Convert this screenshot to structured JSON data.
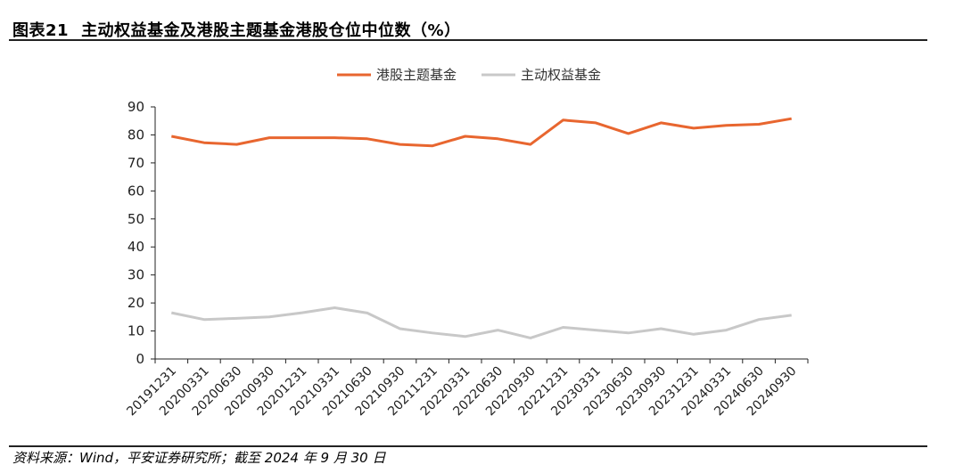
{
  "header": {
    "figure_label": "图表21",
    "title": "主动权益基金及港股主题基金港股仓位中位数（%）"
  },
  "footer": {
    "source": "资料来源：Wind，平安证券研究所；截至 2024 年 9 月 30 日"
  },
  "colors": {
    "hk_series": "#E8662F",
    "active_series": "#C8C8C8",
    "axis": "#222222"
  },
  "chart_data": {
    "type": "line",
    "title": "",
    "xlabel": "",
    "ylabel": "",
    "ylim": [
      0,
      90
    ],
    "yticks": [
      "0",
      "10",
      "20",
      "30",
      "40",
      "50",
      "60",
      "70",
      "80",
      "90"
    ],
    "grid": false,
    "legend_position": "top-center",
    "categories": [
      "20191231",
      "20200331",
      "20200630",
      "20200930",
      "20201231",
      "20210331",
      "20210630",
      "20210930",
      "20211231",
      "20220331",
      "20220630",
      "20220930",
      "20221231",
      "20230331",
      "20230630",
      "20230930",
      "20231231",
      "20240331",
      "20240630",
      "20240930"
    ],
    "series": [
      {
        "name": "港股主题基金",
        "color": "#E8662F",
        "values": [
          79.5,
          77.2,
          76.6,
          79.0,
          79.0,
          79.0,
          78.6,
          76.6,
          76.1,
          79.5,
          78.6,
          76.6,
          85.3,
          84.3,
          80.5,
          84.3,
          82.4,
          83.4,
          83.8,
          85.8
        ]
      },
      {
        "name": "主动权益基金",
        "color": "#C8C8C8",
        "values": [
          16.5,
          14.1,
          14.5,
          15.0,
          16.5,
          18.3,
          16.4,
          10.8,
          9.3,
          8.0,
          10.3,
          7.5,
          11.3,
          10.3,
          9.3,
          10.8,
          8.8,
          10.3,
          14.1,
          15.6
        ]
      }
    ]
  }
}
